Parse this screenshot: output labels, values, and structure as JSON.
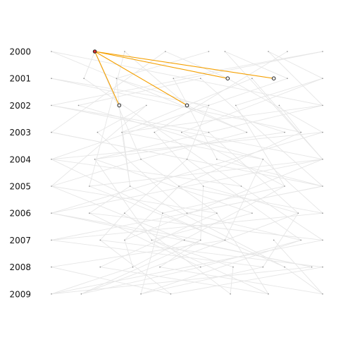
{
  "chart_data": {
    "type": "scatter",
    "description_free": true,
    "y_categories": [
      "2000",
      "2001",
      "2002",
      "2003",
      "2004",
      "2005",
      "2006",
      "2007",
      "2008",
      "2009"
    ],
    "x_range": [
      0,
      1
    ],
    "grid": false,
    "legend": "none",
    "colors": {
      "background_edge": "#e6e6e6",
      "background_dot": "#888888",
      "highlight_edge": "#f5a000",
      "focus_fill": "#e03030",
      "focus_stroke": "#222222",
      "neighbor_stroke": "#222222"
    },
    "nodes": [
      {
        "year": "2000",
        "xs": [
          0.0,
          0.16,
          0.27,
          0.42,
          0.58,
          0.64,
          0.8,
          0.87,
          1.0
        ]
      },
      {
        "year": "2001",
        "xs": [
          0.0,
          0.12,
          0.24,
          0.45,
          0.55,
          0.65,
          0.74,
          0.87,
          1.0
        ]
      },
      {
        "year": "2002",
        "xs": [
          0.0,
          0.1,
          0.25,
          0.35,
          0.5,
          0.58,
          0.68,
          0.84,
          1.0
        ]
      },
      {
        "year": "2003",
        "xs": [
          0.0,
          0.17,
          0.26,
          0.38,
          0.48,
          0.58,
          0.72,
          0.86,
          0.92,
          1.0
        ]
      },
      {
        "year": "2004",
        "xs": [
          0.0,
          0.16,
          0.33,
          0.5,
          0.61,
          0.78,
          1.0
        ]
      },
      {
        "year": "2005",
        "xs": [
          0.0,
          0.14,
          0.29,
          0.47,
          0.56,
          0.7,
          0.86,
          1.0
        ]
      },
      {
        "year": "2006",
        "xs": [
          0.0,
          0.14,
          0.27,
          0.41,
          0.5,
          0.61,
          0.74,
          0.91,
          1.0
        ]
      },
      {
        "year": "2007",
        "xs": [
          0.0,
          0.18,
          0.27,
          0.37,
          0.49,
          0.55,
          0.64,
          0.82,
          0.92,
          1.0
        ]
      },
      {
        "year": "2008",
        "xs": [
          0.0,
          0.18,
          0.3,
          0.4,
          0.55,
          0.67,
          0.78,
          0.86,
          0.96,
          1.0
        ]
      },
      {
        "year": "2009",
        "xs": [
          0.0,
          0.11,
          0.33,
          0.44,
          0.66,
          0.8,
          1.0
        ]
      }
    ],
    "edges": [
      [
        0,
        1,
        1,
        1
      ],
      [
        0,
        3,
        1,
        5
      ],
      [
        0,
        5,
        1,
        7
      ],
      [
        0,
        2,
        2,
        4
      ],
      [
        0,
        6,
        2,
        8
      ],
      [
        0,
        7,
        3,
        3
      ],
      [
        0,
        0,
        3,
        6
      ],
      [
        0,
        8,
        2,
        0
      ],
      [
        0,
        4,
        1,
        2
      ],
      [
        0,
        1,
        4,
        2
      ],
      [
        0,
        3,
        3,
        0
      ],
      [
        0,
        8,
        1,
        3
      ],
      [
        0,
        6,
        1,
        8
      ],
      [
        0,
        2,
        5,
        1
      ],
      [
        0,
        5,
        4,
        6
      ],
      [
        0,
        0,
        2,
        8
      ],
      [
        1,
        0,
        2,
        5
      ],
      [
        1,
        2,
        3,
        7
      ],
      [
        1,
        4,
        2,
        1
      ],
      [
        1,
        6,
        3,
        2
      ],
      [
        1,
        8,
        2,
        6
      ],
      [
        1,
        3,
        4,
        4
      ],
      [
        1,
        5,
        3,
        9
      ],
      [
        1,
        1,
        5,
        5
      ],
      [
        1,
        7,
        4,
        0
      ],
      [
        1,
        2,
        2,
        2
      ],
      [
        1,
        8,
        3,
        4
      ],
      [
        1,
        0,
        3,
        8
      ],
      [
        1,
        6,
        4,
        6
      ],
      [
        1,
        4,
        5,
        7
      ],
      [
        2,
        0,
        3,
        5
      ],
      [
        2,
        1,
        4,
        5
      ],
      [
        2,
        3,
        3,
        1
      ],
      [
        2,
        5,
        4,
        3
      ],
      [
        2,
        7,
        3,
        8
      ],
      [
        2,
        8,
        4,
        1
      ],
      [
        2,
        2,
        5,
        2
      ],
      [
        2,
        4,
        3,
        6
      ],
      [
        2,
        6,
        5,
        6
      ],
      [
        2,
        0,
        4,
        6
      ],
      [
        2,
        3,
        5,
        0
      ],
      [
        2,
        8,
        3,
        2
      ],
      [
        3,
        0,
        4,
        3
      ],
      [
        3,
        2,
        4,
        5
      ],
      [
        3,
        4,
        5,
        6
      ],
      [
        3,
        6,
        4,
        2
      ],
      [
        3,
        8,
        5,
        3
      ],
      [
        3,
        9,
        4,
        0
      ],
      [
        3,
        1,
        6,
        4
      ],
      [
        3,
        3,
        5,
        4
      ],
      [
        3,
        5,
        6,
        7
      ],
      [
        3,
        7,
        4,
        1
      ],
      [
        3,
        0,
        5,
        7
      ],
      [
        3,
        9,
        6,
        0
      ],
      [
        3,
        2,
        5,
        2
      ],
      [
        4,
        0,
        5,
        5
      ],
      [
        4,
        1,
        6,
        6
      ],
      [
        4,
        2,
        5,
        0
      ],
      [
        4,
        3,
        6,
        2
      ],
      [
        4,
        4,
        5,
        7
      ],
      [
        4,
        5,
        6,
        8
      ],
      [
        4,
        6,
        5,
        1
      ],
      [
        4,
        1,
        7,
        3
      ],
      [
        4,
        3,
        7,
        8
      ],
      [
        4,
        6,
        6,
        0
      ],
      [
        4,
        0,
        6,
        3
      ],
      [
        4,
        5,
        7,
        6
      ],
      [
        4,
        2,
        6,
        5
      ],
      [
        4,
        6,
        7,
        2
      ],
      [
        5,
        0,
        6,
        5
      ],
      [
        5,
        1,
        7,
        6
      ],
      [
        5,
        2,
        6,
        1
      ],
      [
        5,
        3,
        7,
        2
      ],
      [
        5,
        4,
        6,
        7
      ],
      [
        5,
        5,
        7,
        9
      ],
      [
        5,
        6,
        6,
        3
      ],
      [
        5,
        7,
        7,
        0
      ],
      [
        5,
        0,
        7,
        4
      ],
      [
        5,
        3,
        6,
        8
      ],
      [
        5,
        6,
        8,
        2
      ],
      [
        5,
        2,
        8,
        7
      ],
      [
        5,
        4,
        7,
        5
      ],
      [
        5,
        7,
        6,
        4
      ],
      [
        6,
        0,
        7,
        5
      ],
      [
        6,
        1,
        8,
        4
      ],
      [
        6,
        2,
        7,
        1
      ],
      [
        6,
        3,
        8,
        7
      ],
      [
        6,
        4,
        7,
        8
      ],
      [
        6,
        5,
        8,
        1
      ],
      [
        6,
        6,
        7,
        3
      ],
      [
        6,
        7,
        8,
        6
      ],
      [
        6,
        8,
        7,
        0
      ],
      [
        6,
        1,
        7,
        9
      ],
      [
        6,
        3,
        9,
        2
      ],
      [
        6,
        5,
        9,
        5
      ],
      [
        6,
        7,
        9,
        1
      ],
      [
        6,
        0,
        8,
        8
      ],
      [
        6,
        2,
        9,
        4
      ],
      [
        7,
        0,
        8,
        6
      ],
      [
        7,
        1,
        9,
        3
      ],
      [
        7,
        2,
        8,
        2
      ],
      [
        7,
        3,
        9,
        5
      ],
      [
        7,
        4,
        8,
        8
      ],
      [
        7,
        5,
        9,
        1
      ],
      [
        7,
        6,
        8,
        0
      ],
      [
        7,
        7,
        9,
        6
      ],
      [
        7,
        8,
        8,
        4
      ],
      [
        7,
        9,
        9,
        0
      ],
      [
        7,
        1,
        8,
        9
      ],
      [
        7,
        3,
        8,
        5
      ],
      [
        7,
        5,
        8,
        3
      ],
      [
        7,
        8,
        9,
        2
      ],
      [
        8,
        0,
        9,
        3
      ],
      [
        8,
        1,
        9,
        5
      ],
      [
        8,
        2,
        9,
        0
      ],
      [
        8,
        3,
        9,
        6
      ],
      [
        8,
        4,
        9,
        1
      ],
      [
        8,
        5,
        9,
        4
      ],
      [
        8,
        6,
        9,
        2
      ],
      [
        8,
        7,
        9,
        6
      ],
      [
        8,
        8,
        9,
        0
      ],
      [
        8,
        9,
        9,
        3
      ]
    ],
    "focus_node": {
      "row": 0,
      "x": 0.16
    },
    "highlight_targets": [
      {
        "row": 1,
        "x": 0.65
      },
      {
        "row": 1,
        "x": 0.82
      },
      {
        "row": 2,
        "x": 0.25
      },
      {
        "row": 2,
        "x": 0.5
      }
    ]
  }
}
